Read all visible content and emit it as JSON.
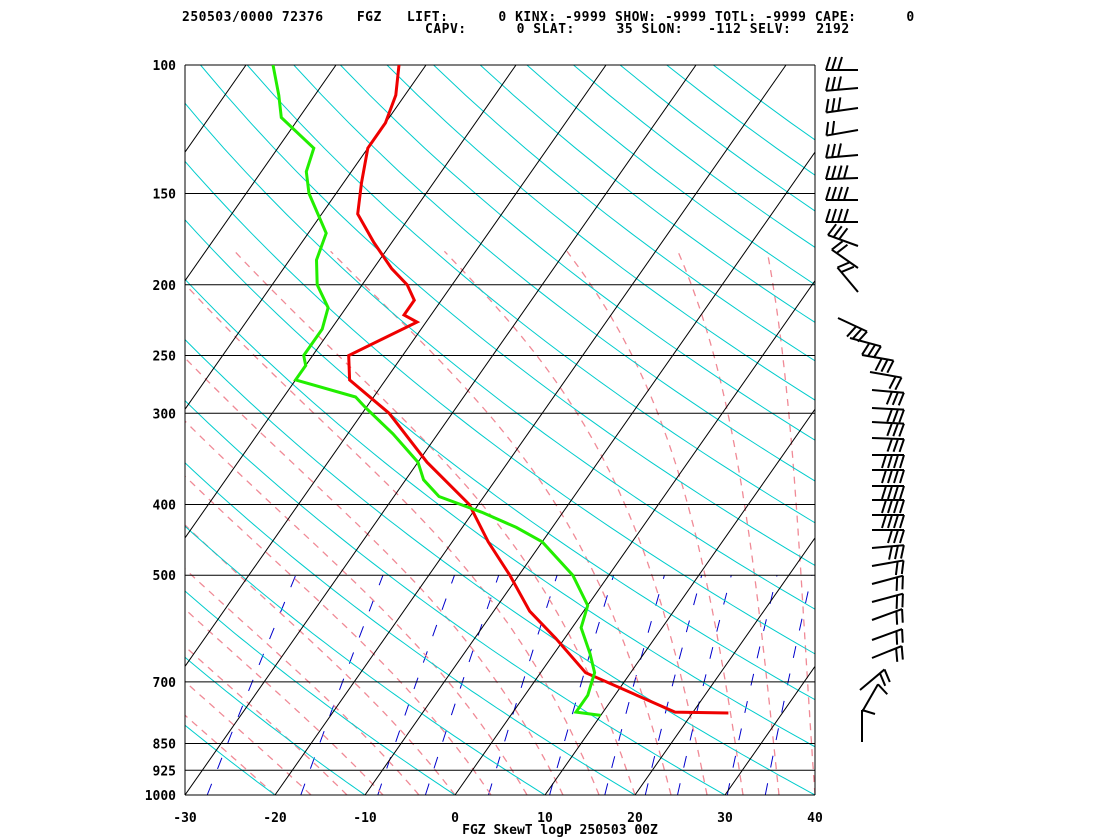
{
  "header": {
    "line1": "250503/0000 72376    FGZ   LIFT:      0 KINX: -9999 SHOW: -9999 TOTL: -9999 CAPE:      0",
    "line2": "CAPV:      0 SLAT:     35 SLON:   -112 SELV:   2192"
  },
  "footer": "FGZ SkewT logP 250503 00Z",
  "colors": {
    "isobar": "#000000",
    "isotherm": "#000000",
    "dry_adiabat": "#00cccc",
    "moist_adiabat": "#f08a96",
    "mixing_ratio": "#0000cc",
    "temperature": "#ee0000",
    "dewpoint": "#22ee00",
    "wind_barb": "#000000"
  },
  "chart_data": {
    "type": "line",
    "title": "FGZ SkewT logP 250503 00Z",
    "xlabel": "",
    "ylabel": "",
    "x_ticks": [
      "-30",
      "-20",
      "-10",
      "0",
      "10",
      "20",
      "30",
      "40"
    ],
    "p_ticks": [
      "100",
      "150",
      "200",
      "250",
      "300",
      "400",
      "500",
      "700",
      "850",
      "925",
      "1000"
    ],
    "xlim": [
      -30,
      40
    ],
    "plim": [
      1000,
      100
    ],
    "y_scale": "log",
    "grid": true,
    "series": [
      {
        "label": "temperature",
        "points": [
          [
            772,
            24
          ],
          [
            770,
            18
          ],
          [
            680,
            5
          ],
          [
            610,
            -1
          ],
          [
            560,
            -6
          ],
          [
            500,
            -11
          ],
          [
            450,
            -16
          ],
          [
            400,
            -21
          ],
          [
            350,
            -29
          ],
          [
            300,
            -37
          ],
          [
            270,
            -44
          ],
          [
            250,
            -46
          ],
          [
            225,
            -41
          ],
          [
            220,
            -43
          ],
          [
            210,
            -43
          ],
          [
            200,
            -45
          ],
          [
            190,
            -48
          ],
          [
            175,
            -52
          ],
          [
            160,
            -56
          ],
          [
            145,
            -58
          ],
          [
            130,
            -60
          ],
          [
            120,
            -60
          ],
          [
            110,
            -61
          ],
          [
            100,
            -63
          ]
        ]
      },
      {
        "label": "dewpoint",
        "points": [
          [
            778,
            10
          ],
          [
            770,
            7
          ],
          [
            730,
            7
          ],
          [
            680,
            6
          ],
          [
            640,
            4
          ],
          [
            590,
            1
          ],
          [
            550,
            0
          ],
          [
            500,
            -4
          ],
          [
            450,
            -10
          ],
          [
            430,
            -14
          ],
          [
            410,
            -19
          ],
          [
            390,
            -25
          ],
          [
            370,
            -28
          ],
          [
            350,
            -30
          ],
          [
            320,
            -35
          ],
          [
            295,
            -40
          ],
          [
            285,
            -42
          ],
          [
            270,
            -50
          ],
          [
            258,
            -50
          ],
          [
            250,
            -51
          ],
          [
            230,
            -51
          ],
          [
            215,
            -52
          ],
          [
            200,
            -55
          ],
          [
            185,
            -57
          ],
          [
            170,
            -58
          ],
          [
            150,
            -63
          ],
          [
            140,
            -65
          ],
          [
            130,
            -66
          ],
          [
            118,
            -72
          ],
          [
            110,
            -74
          ],
          [
            100,
            -77
          ]
        ]
      }
    ],
    "wind_barbs_present": true
  }
}
